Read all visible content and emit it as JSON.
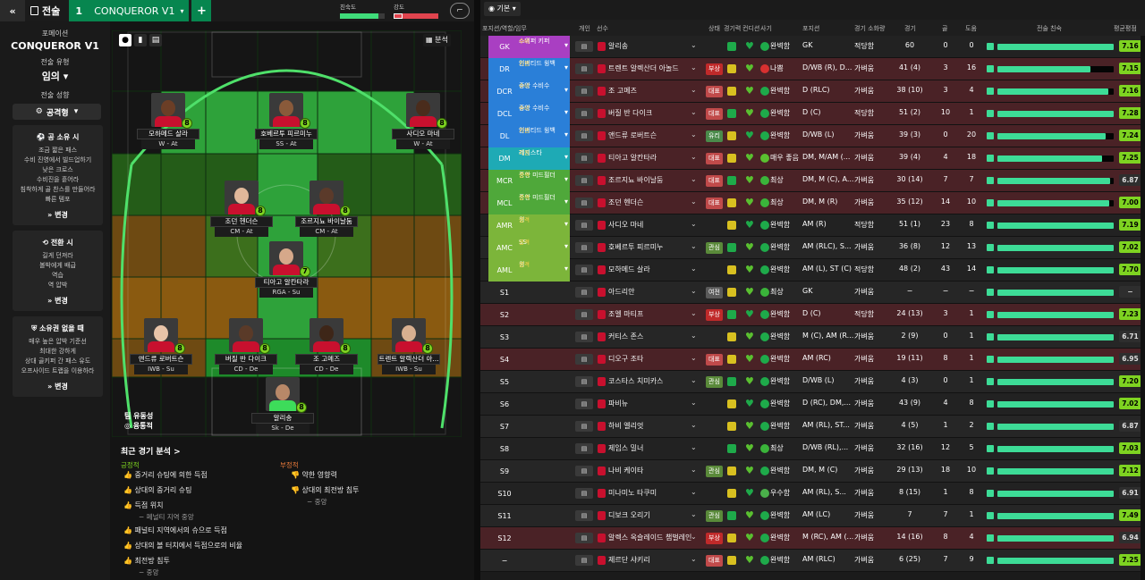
{
  "topbar": {
    "back_icon": "double-chevron-left-icon",
    "tactics_label": "전술",
    "slot_number": "1",
    "tactic_name": "CONQUEROR V1",
    "add_label": "+",
    "bar1_label": "친숙도",
    "bar1_value": 0.85,
    "bar2_label": "강도",
    "bar2_value": 0.2,
    "kit_icon": "shirt-icon",
    "colors": {
      "familiarity": "#3fdc7a",
      "intensity": "#e0444e"
    }
  },
  "left": {
    "format_label": "포메이션",
    "formation": "CONQUEROR V1",
    "type_label": "전술 유형",
    "type": "임의",
    "mentality_label": "전술 성향",
    "mentality": "공격형",
    "in_possession": {
      "title": "공 소유 시",
      "lines": [
        "조금 짧은 패스",
        "수비 진영에서 빌드업하기",
        "낮은 크로스",
        "수비진을 흩어라",
        "침착하게 골 찬스를 만들어라",
        "빠른 템포"
      ],
      "change": "변경"
    },
    "transition": {
      "title": "전환 시",
      "lines": [
        "길게 던져라",
        "볼박에게 배급",
        "역습",
        "역 압박"
      ],
      "change": "변경"
    },
    "out_possession": {
      "title": "소유권 없을 때",
      "lines": [
        "매우 높은 압박 기준선",
        "최대한 강하게",
        "상대 골키퍼 간 패스 유도",
        "오프사이드 트랩을 이용하라"
      ],
      "change": "변경"
    }
  },
  "pitch": {
    "analysis_label": "분석",
    "team_style_label": "팀 유동성",
    "team_style": "융통적"
  },
  "players": [
    {
      "name": "모하메드 살라",
      "role": "W - At",
      "rating": "8"
    },
    {
      "name": "호베르투 피르미누",
      "role": "SS - At",
      "rating": "8"
    },
    {
      "name": "사디오 마네",
      "role": "W - At",
      "rating": "8"
    },
    {
      "name": "조던 헨더슨",
      "role": "CM - At",
      "rating": "8"
    },
    {
      "name": "조르지뇨 바이날둠",
      "role": "CM - At",
      "rating": "8"
    },
    {
      "name": "티아고 알칸타라",
      "role": "RGA - Su",
      "rating": "7"
    },
    {
      "name": "앤드류 로버트슨",
      "role": "IWB - Su",
      "rating": "8"
    },
    {
      "name": "버질 반 다이크",
      "role": "CD - De",
      "rating": "8"
    },
    {
      "name": "조 고메즈",
      "role": "CD - De",
      "rating": "8"
    },
    {
      "name": "트렌트 알렉산더 아...",
      "role": "IWB - Su",
      "rating": "8"
    },
    {
      "name": "알리송",
      "role": "Sk - De",
      "rating": "8"
    }
  ],
  "analysis": {
    "title": "최근 경기 분석 >",
    "strong_label": "긍정적",
    "weak_label": "부정적",
    "strong": [
      "중거리 슈팅에 의한 득점",
      "상대의 중거리 슈팅",
      "득점 위치",
      "패널티 지역에서의 슈으로 득점",
      "상대의 볼 터치에서 득점으로의 비율",
      "최전방 침투"
    ],
    "strong_sub1": "− 페널티 지역 중앙",
    "strong_sub2": "− 중앙",
    "weak": [
      "약한 영향력",
      "상대의 최전방 침투"
    ],
    "weak_sub": "− 중앙"
  },
  "right": {
    "view_label": "기본",
    "headers": {
      "pos": "포지션/역할/임무",
      "ind": "개인",
      "player": "선수",
      "status": "상태",
      "cond": "경기력",
      "fit": "컨디션",
      "morale": "사기",
      "position": "포지션",
      "familiar": "경기 소화량",
      "apps": "경기",
      "goals": "골",
      "assists": "도움",
      "form": "전술 친숙",
      "avg": "평균평점"
    },
    "rows": [
      {
        "pos": "GK",
        "role": "스위퍼 키퍼",
        "duty": "수비",
        "name": "알리송",
        "status": "",
        "morale": "완벽함",
        "position": "GK",
        "fam": "적당함",
        "apps": "60",
        "goals": "0",
        "assists": "0",
        "fill": 1.0,
        "rating": "7.16"
      },
      {
        "pos": "DR",
        "role": "인버티드 윙백",
        "duty": "지원",
        "name": "트렌트 알렉산더 아놀드",
        "status": "부상",
        "morale": "나쁨",
        "position": "D/WB (R), D...",
        "fam": "가벼움",
        "apps": "41 (4)",
        "goals": "3",
        "assists": "16",
        "fill": 0.8,
        "rating": "7.15"
      },
      {
        "pos": "DCR",
        "role": "중앙 수비수",
        "duty": "수비",
        "name": "조 고메즈",
        "status": "대표",
        "morale": "완벽함",
        "position": "D (RLC)",
        "fam": "가벼움",
        "apps": "38 (10)",
        "goals": "3",
        "assists": "4",
        "fill": 0.95,
        "rating": "7.16"
      },
      {
        "pos": "DCL",
        "role": "중앙 수비수",
        "duty": "수비",
        "name": "버질 반 다이크",
        "status": "대표",
        "morale": "완벽함",
        "position": "D (C)",
        "fam": "적당함",
        "apps": "51 (2)",
        "goals": "10",
        "assists": "1",
        "fill": 1.0,
        "rating": "7.28"
      },
      {
        "pos": "DL",
        "role": "인버티드 윙백",
        "duty": "지원",
        "name": "앤드류 로버트슨",
        "status": "유리",
        "morale": "완벽함",
        "position": "D/WB (L)",
        "fam": "가벼움",
        "apps": "39 (3)",
        "goals": "0",
        "assists": "20",
        "fill": 0.93,
        "rating": "7.24"
      },
      {
        "pos": "DM",
        "role": "레지스타",
        "duty": "지원",
        "name": "티아고 알칸타라",
        "status": "대표",
        "morale": "매우 좋음",
        "position": "DM, M/AM (...",
        "fam": "가벼움",
        "apps": "39 (4)",
        "goals": "4",
        "assists": "18",
        "fill": 0.9,
        "rating": "7.25"
      },
      {
        "pos": "MCR",
        "role": "중앙 미드필더",
        "duty": "공격",
        "name": "조르지뇨 바이날둠",
        "status": "대표",
        "morale": "최상",
        "position": "DM, M (C), A...",
        "fam": "가벼움",
        "apps": "30 (14)",
        "goals": "7",
        "assists": "7",
        "fill": 0.97,
        "rating": "6.87"
      },
      {
        "pos": "MCL",
        "role": "중앙 미드필더",
        "duty": "공격",
        "name": "조던 헨더슨",
        "status": "대표",
        "morale": "최상",
        "position": "DM, M (R)",
        "fam": "가벼움",
        "apps": "35 (12)",
        "goals": "14",
        "assists": "10",
        "fill": 0.96,
        "rating": "7.00"
      },
      {
        "pos": "AMR",
        "role": "윙",
        "duty": "공격",
        "name": "사디오 마네",
        "status": "",
        "morale": "완벽함",
        "position": "AM (R)",
        "fam": "적당함",
        "apps": "51 (1)",
        "goals": "23",
        "assists": "8",
        "fill": 1.0,
        "rating": "7.19"
      },
      {
        "pos": "AMC",
        "role": "SS",
        "duty": "공격",
        "name": "호베르투 피르미누",
        "status": "관심",
        "morale": "완벽함",
        "position": "AM (RLC), S...",
        "fam": "가벼움",
        "apps": "36 (8)",
        "goals": "12",
        "assists": "13",
        "fill": 1.0,
        "rating": "7.02"
      },
      {
        "pos": "AML",
        "role": "윙",
        "duty": "공격",
        "name": "모하메드 살라",
        "status": "",
        "morale": "완벽함",
        "position": "AM (L), ST (C)",
        "fam": "적당함",
        "apps": "48 (2)",
        "goals": "43",
        "assists": "14",
        "fill": 1.0,
        "rating": "7.70"
      },
      {
        "pos": "S1",
        "role": "",
        "duty": "",
        "name": "아드리안",
        "status": "여전",
        "morale": "최상",
        "position": "GK",
        "fam": "가벼움",
        "apps": "−",
        "goals": "−",
        "assists": "−",
        "fill": 1.0,
        "rating": "−"
      },
      {
        "pos": "S2",
        "role": "",
        "duty": "",
        "name": "조엘 마티프",
        "status": "부상",
        "morale": "완벽함",
        "position": "D (C)",
        "fam": "적당함",
        "apps": "24 (13)",
        "goals": "3",
        "assists": "1",
        "fill": 1.0,
        "rating": "7.23"
      },
      {
        "pos": "S3",
        "role": "",
        "duty": "",
        "name": "커티스 존스",
        "status": "",
        "morale": "완벽함",
        "position": "M (C), AM (R...",
        "fam": "가벼움",
        "apps": "2 (9)",
        "goals": "0",
        "assists": "1",
        "fill": 1.0,
        "rating": "6.71"
      },
      {
        "pos": "S4",
        "role": "",
        "duty": "",
        "name": "디오구 조타",
        "status": "대표",
        "morale": "완벽함",
        "position": "AM (RC)",
        "fam": "가벼움",
        "apps": "19 (11)",
        "goals": "8",
        "assists": "1",
        "fill": 1.0,
        "rating": "6.95"
      },
      {
        "pos": "S5",
        "role": "",
        "duty": "",
        "name": "코스타스 치미카스",
        "status": "관심",
        "morale": "완벽함",
        "position": "D/WB (L)",
        "fam": "가벼움",
        "apps": "4 (3)",
        "goals": "0",
        "assists": "1",
        "fill": 1.0,
        "rating": "7.20"
      },
      {
        "pos": "S6",
        "role": "",
        "duty": "",
        "name": "파비뉴",
        "status": "",
        "morale": "완벽함",
        "position": "D (RC), DM,...",
        "fam": "가벼움",
        "apps": "43 (9)",
        "goals": "4",
        "assists": "8",
        "fill": 1.0,
        "rating": "7.02"
      },
      {
        "pos": "S7",
        "role": "",
        "duty": "",
        "name": "하비 엘리엇",
        "status": "",
        "morale": "완벽함",
        "position": "AM (RL), ST...",
        "fam": "가벼움",
        "apps": "4 (5)",
        "goals": "1",
        "assists": "2",
        "fill": 1.0,
        "rating": "6.87"
      },
      {
        "pos": "S8",
        "role": "",
        "duty": "",
        "name": "제임스 밀너",
        "status": "",
        "morale": "최상",
        "position": "D/WB (RL),...",
        "fam": "가벼움",
        "apps": "32 (16)",
        "goals": "12",
        "assists": "5",
        "fill": 1.0,
        "rating": "7.03"
      },
      {
        "pos": "S9",
        "role": "",
        "duty": "",
        "name": "나비 케이타",
        "status": "관심",
        "morale": "완벽함",
        "position": "DM, M (C)",
        "fam": "가벼움",
        "apps": "29 (13)",
        "goals": "18",
        "assists": "10",
        "fill": 1.0,
        "rating": "7.12"
      },
      {
        "pos": "S10",
        "role": "",
        "duty": "",
        "name": "미나미노 타쿠미",
        "status": "",
        "morale": "우수함",
        "position": "AM (RL), S...",
        "fam": "가벼움",
        "apps": "8 (15)",
        "goals": "1",
        "assists": "8",
        "fill": 1.0,
        "rating": "6.91"
      },
      {
        "pos": "S11",
        "role": "",
        "duty": "",
        "name": "디보크 오리기",
        "status": "관심",
        "morale": "완벽함",
        "position": "AM (LC)",
        "fam": "가벼움",
        "apps": "7",
        "goals": "7",
        "assists": "1",
        "fill": 1.0,
        "rating": "7.49"
      },
      {
        "pos": "S12",
        "role": "",
        "duty": "",
        "name": "알렉스 옥슬레이드 챔벌레인",
        "status": "부상",
        "morale": "완벽함",
        "position": "M (RC), AM (...",
        "fam": "가벼움",
        "apps": "14 (16)",
        "goals": "8",
        "assists": "4",
        "fill": 1.0,
        "rating": "6.94"
      },
      {
        "pos": "−",
        "role": "",
        "duty": "",
        "name": "제르단 샤키리",
        "status": "대표",
        "morale": "완벽함",
        "position": "AM (RLC)",
        "fam": "가벼움",
        "apps": "6 (25)",
        "goals": "7",
        "assists": "9",
        "fill": 1.0,
        "rating": "7.25"
      }
    ]
  }
}
